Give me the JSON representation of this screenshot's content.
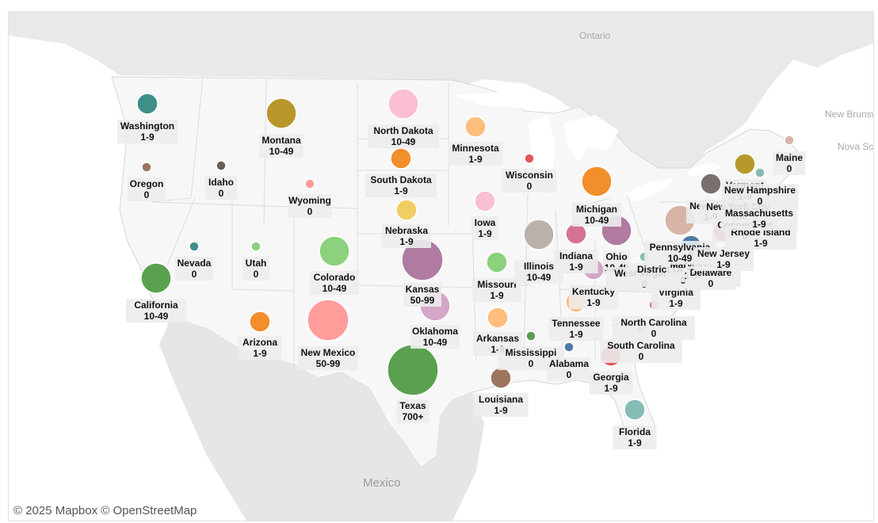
{
  "map": {
    "attribution": "© 2025 Mapbox © OpenStreetMap",
    "geo_labels": [
      "Ontario",
      "Mexico",
      "New Brunswick",
      "Nova Scotia"
    ],
    "land_color": "#f3f3f3",
    "water_color": "#ffffff"
  },
  "legend_bins": [
    "0",
    "1-9",
    "10-49",
    "50-99",
    "700+"
  ],
  "states": [
    {
      "name": "Washington",
      "value": "1-9",
      "color": "#3e8f8a"
    },
    {
      "name": "Oregon",
      "value": "0",
      "color": "#9c735b"
    },
    {
      "name": "California",
      "value": "10-49",
      "color": "#59a14f"
    },
    {
      "name": "Nevada",
      "value": "0",
      "color": "#3e8f8a"
    },
    {
      "name": "Idaho",
      "value": "0",
      "color": "#6b5c54"
    },
    {
      "name": "Montana",
      "value": "10-49",
      "color": "#b8962a"
    },
    {
      "name": "Wyoming",
      "value": "0",
      "color": "#ff9d9a"
    },
    {
      "name": "Utah",
      "value": "0",
      "color": "#8cd17d"
    },
    {
      "name": "Arizona",
      "value": "1-9",
      "color": "#f28e2b"
    },
    {
      "name": "Colorado",
      "value": "10-49",
      "color": "#8cd17d"
    },
    {
      "name": "New Mexico",
      "value": "50-99",
      "color": "#ff9d9a"
    },
    {
      "name": "North Dakota",
      "value": "10-49",
      "color": "#fabfd2"
    },
    {
      "name": "South Dakota",
      "value": "1-9",
      "color": "#f28e2b"
    },
    {
      "name": "Nebraska",
      "value": "1-9",
      "color": "#f1ce63"
    },
    {
      "name": "Kansas",
      "value": "50-99",
      "color": "#b07aa1"
    },
    {
      "name": "Oklahoma",
      "value": "10-49",
      "color": "#d4a6c8"
    },
    {
      "name": "Texas",
      "value": "700+",
      "color": "#59a14f"
    },
    {
      "name": "Minnesota",
      "value": "1-9",
      "color": "#ffbe7d"
    },
    {
      "name": "Iowa",
      "value": "1-9",
      "color": "#fabfd2"
    },
    {
      "name": "Missouri",
      "value": "1-9",
      "color": "#8cd17d"
    },
    {
      "name": "Arkansas",
      "value": "1-9",
      "color": "#ffbe7d"
    },
    {
      "name": "Louisiana",
      "value": "1-9",
      "color": "#9c755f"
    },
    {
      "name": "Wisconsin",
      "value": "0",
      "color": "#e15759"
    },
    {
      "name": "Illinois",
      "value": "10-49",
      "color": "#bab0ac"
    },
    {
      "name": "Mississippi",
      "value": "0",
      "color": "#59a14f"
    },
    {
      "name": "Alabama",
      "value": "0",
      "color": "#4e79a7"
    },
    {
      "name": "Michigan",
      "value": "10-49",
      "color": "#f28e2b"
    },
    {
      "name": "Indiana",
      "value": "1-9",
      "color": "#d37295"
    },
    {
      "name": "Ohio",
      "value": "10-49",
      "color": "#b07aa1"
    },
    {
      "name": "Kentucky",
      "value": "1-9",
      "color": "#d4a6c8"
    },
    {
      "name": "Tennessee",
      "value": "1-9",
      "color": "#ffbe7d"
    },
    {
      "name": "Georgia",
      "value": "1-9",
      "color": "#e15759"
    },
    {
      "name": "Florida",
      "value": "1-9",
      "color": "#86bcb6"
    },
    {
      "name": "South Carolina",
      "value": "0",
      "color": "#a0cbe8"
    },
    {
      "name": "North Carolina",
      "value": "0",
      "color": "#d37295"
    },
    {
      "name": "Virginia",
      "value": "1-9",
      "color": "#f1ce63"
    },
    {
      "name": "West Virginia",
      "value": "0",
      "color": "#86bcb6"
    },
    {
      "name": "District Of Columbia",
      "value": "0",
      "color": "#a0cbe8"
    },
    {
      "name": "Maryland",
      "value": "1-9",
      "color": "#4e79a7"
    },
    {
      "name": "Delaware",
      "value": "0",
      "color": "#f1ce63"
    },
    {
      "name": "Pennsylvania",
      "value": "10-49",
      "color": "#d7b5a6"
    },
    {
      "name": "New Jersey",
      "value": "1-9",
      "color": "#e15759"
    },
    {
      "name": "New York",
      "value": "1-9",
      "color": "#79706e"
    },
    {
      "name": "New York City",
      "value": "1-9",
      "color": "#79706e"
    },
    {
      "name": "Connecticut",
      "value": "0",
      "color": "#b6992d"
    },
    {
      "name": "Rhode Island",
      "value": "1-9",
      "color": "#a0cbe8"
    },
    {
      "name": "Massachusetts",
      "value": "1-9",
      "color": "#4e79a7"
    },
    {
      "name": "Vermont",
      "value": "1-9",
      "color": "#b6992d"
    },
    {
      "name": "New Hampshire",
      "value": "0",
      "color": "#86bcb6"
    },
    {
      "name": "Maine",
      "value": "0",
      "color": "#d7b5a6"
    }
  ]
}
